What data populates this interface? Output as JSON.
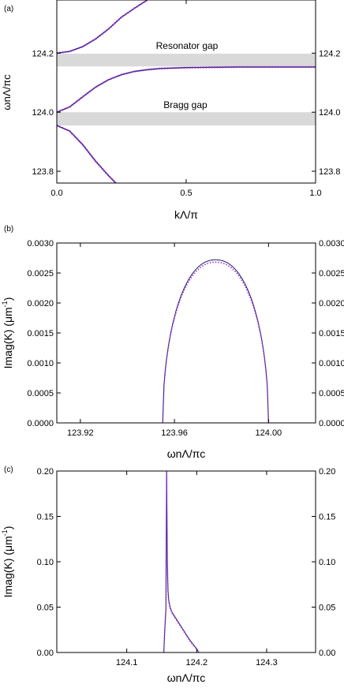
{
  "chart_data": [
    {
      "panel": "(a)",
      "type": "line",
      "xlabel": "kΛ/π",
      "ylabel": "ωnΛ/πc",
      "xlim": [
        0,
        1
      ],
      "ylim": [
        123.76,
        124.38
      ],
      "xticks": [
        "0.0",
        "0.5",
        "1.0"
      ],
      "yticks": [
        "123.8",
        "124.0",
        "124.2"
      ],
      "bands": [
        {
          "label": "Resonator gap",
          "y": [
            124.155,
            124.198
          ]
        },
        {
          "label": "Bragg gap",
          "y": [
            123.955,
            124.0
          ]
        }
      ],
      "curves": [
        {
          "name": "upper",
          "x": [
            0,
            0.05,
            0.1,
            0.15,
            0.2,
            0.25,
            0.3,
            0.35
          ],
          "y": [
            124.2,
            124.206,
            124.222,
            124.248,
            124.282,
            124.322,
            124.352,
            124.38
          ]
        },
        {
          "name": "middle",
          "x": [
            0,
            0.05,
            0.1,
            0.15,
            0.2,
            0.25,
            0.3,
            0.35,
            0.4,
            0.5,
            0.6,
            0.7,
            0.8,
            0.9,
            1.0
          ],
          "y": [
            124.0,
            124.018,
            124.052,
            124.085,
            124.11,
            124.127,
            124.138,
            124.144,
            124.148,
            124.151,
            124.152,
            124.153,
            124.153,
            124.153,
            124.153
          ]
        },
        {
          "name": "lower",
          "x": [
            0,
            0.05,
            0.1,
            0.15,
            0.2,
            0.228
          ],
          "y": [
            123.955,
            123.936,
            123.89,
            123.834,
            123.785,
            123.76
          ]
        }
      ]
    },
    {
      "panel": "(b)",
      "type": "line",
      "xlabel": "ωnΛ/πc",
      "ylabel": "Imag(K) (μm",
      "ylabel_sup": "-1",
      "ylabel_close": ")",
      "xlim": [
        123.91,
        124.02
      ],
      "ylim": [
        0,
        0.003
      ],
      "xticks": [
        "123.92",
        "123.96",
        "124.00"
      ],
      "yticks": [
        "0.0000",
        "0.0005",
        "0.0010",
        "0.0015",
        "0.0020",
        "0.0025",
        "0.0030"
      ],
      "series": [
        {
          "name": "solid",
          "x_range": [
            123.955,
            124.0
          ],
          "peak": 0.00272
        },
        {
          "name": "dotted",
          "x_range": [
            123.955,
            124.0
          ],
          "peak": 0.00268
        }
      ]
    },
    {
      "panel": "(c)",
      "type": "line",
      "xlabel": "ωnΛ/πc",
      "ylabel": "Imag(K) (μm",
      "ylabel_sup": "-1",
      "ylabel_close": ")",
      "xlim": [
        124.0,
        124.37
      ],
      "ylim": [
        0,
        0.2
      ],
      "xticks": [
        "124.1",
        "124.2",
        "124.3"
      ],
      "yticks": [
        "0.00",
        "0.05",
        "0.10",
        "0.15",
        "0.20"
      ],
      "series": [
        {
          "name": "solid",
          "x": [
            124.153,
            124.154,
            124.155,
            124.156,
            124.157,
            124.158,
            124.159,
            124.16,
            124.162,
            124.165,
            124.17,
            124.175,
            124.18,
            124.185,
            124.19,
            124.195,
            124.2,
            124.203
          ],
          "y": [
            0.0,
            0.02,
            0.035,
            0.048,
            0.2,
            0.1,
            0.068,
            0.058,
            0.05,
            0.044,
            0.038,
            0.032,
            0.026,
            0.02,
            0.014,
            0.009,
            0.004,
            0.0
          ]
        },
        {
          "name": "dotted",
          "x": [
            124.153,
            124.154,
            124.155,
            124.156,
            124.157,
            124.158,
            124.159,
            124.16,
            124.162,
            124.165,
            124.17,
            124.175,
            124.18,
            124.185,
            124.19,
            124.195,
            124.2,
            124.203
          ],
          "y": [
            0.0,
            0.018,
            0.033,
            0.046,
            0.198,
            0.098,
            0.066,
            0.056,
            0.049,
            0.043,
            0.037,
            0.031,
            0.025,
            0.019,
            0.013,
            0.008,
            0.004,
            0.0
          ]
        }
      ]
    }
  ],
  "colors": {
    "solid": "#1a1a60",
    "dotted": "#9b30d8",
    "band": "#d9d9d9",
    "axis": "#000000"
  }
}
